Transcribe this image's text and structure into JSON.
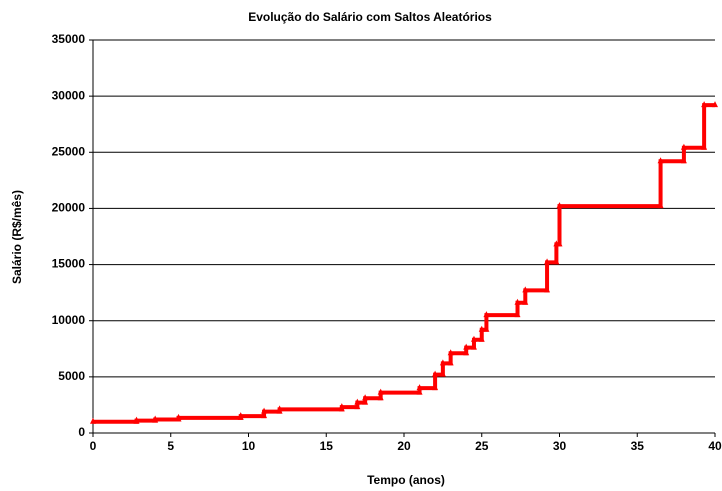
{
  "chart_data": {
    "type": "line",
    "title": "Evolução do Salário com Saltos Aleatórios",
    "x_label": "Tempo (anos)",
    "y_label": "Salário (R$/mês)",
    "xlim": [
      0,
      40
    ],
    "xticks": [
      0,
      5,
      10,
      15,
      20,
      25,
      30,
      35,
      40
    ],
    "ylim": [
      0,
      35000
    ],
    "yticks": [
      0,
      5000,
      10000,
      15000,
      20000,
      25000,
      30000,
      35000
    ],
    "grid": true,
    "series": [
      {
        "name": "Salário",
        "color": "#ff0000",
        "x": [
          0,
          2.8,
          2.8,
          4,
          4,
          5.5,
          5.5,
          9.5,
          9.5,
          11,
          11,
          12,
          12,
          16,
          16,
          17,
          17,
          17.5,
          17.5,
          18.5,
          18.5,
          21,
          21,
          22,
          22,
          22.5,
          22.5,
          23,
          23,
          24,
          24,
          24.5,
          24.5,
          25,
          25,
          25.3,
          25.3,
          27.3,
          27.3,
          27.8,
          27.8,
          29.2,
          29.2,
          29.8,
          29.8,
          30,
          30,
          36.5,
          36.5,
          38,
          38,
          39.3,
          39.3,
          40
        ],
        "values": [
          1000,
          1000,
          1100,
          1100,
          1200,
          1200,
          1350,
          1350,
          1500,
          1500,
          1900,
          1900,
          2100,
          2100,
          2300,
          2300,
          2700,
          2700,
          3100,
          3100,
          3600,
          3600,
          4000,
          4000,
          5200,
          5200,
          6200,
          6200,
          7100,
          7100,
          7600,
          7600,
          8300,
          8300,
          9200,
          9200,
          10500,
          10500,
          11600,
          11600,
          12700,
          12700,
          15200,
          15200,
          16800,
          16800,
          20200,
          20200,
          24200,
          24200,
          25400,
          25400,
          29200,
          29200
        ]
      }
    ]
  }
}
